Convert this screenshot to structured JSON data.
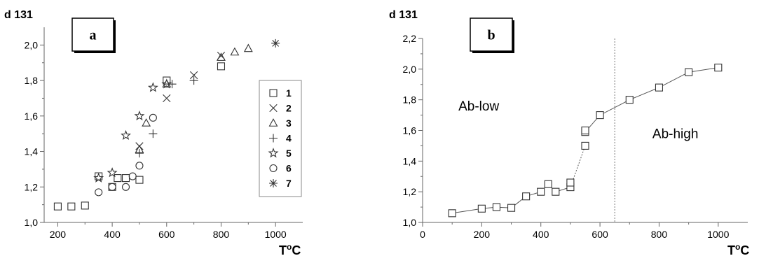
{
  "chart_data": [
    {
      "type": "scatter",
      "panel_letter": "a",
      "ylabel": "d 131",
      "xlabel": "T",
      "xlabel_sup": "o",
      "xlabel_tail": "C",
      "xlim": [
        150,
        1100
      ],
      "ylim": [
        1.0,
        2.1
      ],
      "xticks": [
        200,
        400,
        600,
        800,
        1000
      ],
      "xtick_labels": [
        "200",
        "400",
        "600",
        "800",
        "1000"
      ],
      "yticks": [
        1.0,
        1.2,
        1.4,
        1.6,
        1.8,
        2.0
      ],
      "ytick_labels": [
        "1,0",
        "1,2",
        "1,4",
        "1,6",
        "1,8",
        "2,0"
      ],
      "legend": {
        "position": "right",
        "entries": [
          "1",
          "2",
          "3",
          "4",
          "5",
          "6",
          "7"
        ]
      },
      "series": [
        {
          "name": "1",
          "marker": "square",
          "points": [
            [
              200,
              1.09
            ],
            [
              250,
              1.09
            ],
            [
              300,
              1.095
            ],
            [
              350,
              1.26
            ],
            [
              400,
              1.2
            ],
            [
              420,
              1.25
            ],
            [
              450,
              1.25
            ],
            [
              500,
              1.24
            ],
            [
              600,
              1.8
            ],
            [
              800,
              1.88
            ]
          ]
        },
        {
          "name": "2",
          "marker": "x",
          "points": [
            [
              500,
              1.43
            ],
            [
              600,
              1.7
            ],
            [
              700,
              1.83
            ],
            [
              800,
              1.94
            ]
          ]
        },
        {
          "name": "3",
          "marker": "triangle",
          "points": [
            [
              500,
              1.41
            ],
            [
              525,
              1.56
            ],
            [
              600,
              1.78
            ],
            [
              800,
              1.93
            ],
            [
              850,
              1.96
            ],
            [
              900,
              1.98
            ]
          ]
        },
        {
          "name": "4",
          "marker": "plus",
          "points": [
            [
              500,
              1.39
            ],
            [
              550,
              1.5
            ],
            [
              620,
              1.78
            ],
            [
              700,
              1.8
            ]
          ]
        },
        {
          "name": "5",
          "marker": "star",
          "points": [
            [
              350,
              1.25
            ],
            [
              400,
              1.28
            ],
            [
              450,
              1.49
            ],
            [
              500,
              1.6
            ],
            [
              550,
              1.76
            ],
            [
              600,
              1.78
            ]
          ]
        },
        {
          "name": "6",
          "marker": "circle",
          "points": [
            [
              350,
              1.17
            ],
            [
              400,
              1.2
            ],
            [
              450,
              1.2
            ],
            [
              475,
              1.26
            ],
            [
              500,
              1.32
            ],
            [
              550,
              1.59
            ]
          ]
        },
        {
          "name": "7",
          "marker": "asterisk",
          "points": [
            [
              1000,
              2.01
            ]
          ]
        }
      ]
    },
    {
      "type": "line",
      "panel_letter": "b",
      "ylabel": "d 131",
      "xlabel": "T",
      "xlabel_sup": "o",
      "xlabel_tail": "C",
      "xlim": [
        0,
        1100
      ],
      "ylim": [
        1.0,
        2.2
      ],
      "xticks": [
        0,
        200,
        400,
        600,
        800,
        1000
      ],
      "xtick_labels": [
        "0",
        "200",
        "400",
        "600",
        "800",
        "1000"
      ],
      "yticks": [
        1.0,
        1.2,
        1.4,
        1.6,
        1.8,
        2.0,
        2.2
      ],
      "ytick_labels": [
        "1,0",
        "1,2",
        "1,4",
        "1,6",
        "1,8",
        "2,0",
        "2,2"
      ],
      "divider_x": 650,
      "annotations": [
        {
          "text": "Ab-low",
          "x": 190,
          "y": 1.73
        },
        {
          "text": "Ab-high",
          "x": 855,
          "y": 1.55
        }
      ],
      "series": [
        {
          "marker": "square",
          "points": [
            [
              100,
              1.06
            ],
            [
              200,
              1.09
            ],
            [
              250,
              1.1
            ],
            [
              300,
              1.095
            ],
            [
              350,
              1.17
            ],
            [
              400,
              1.2
            ],
            [
              425,
              1.25
            ],
            [
              450,
              1.2
            ],
            [
              500,
              1.23
            ],
            [
              500,
              1.26
            ],
            [
              550,
              1.5
            ],
            [
              550,
              1.59
            ],
            [
              550,
              1.6
            ],
            [
              600,
              1.7
            ],
            [
              700,
              1.8
            ],
            [
              800,
              1.88
            ],
            [
              900,
              1.98
            ],
            [
              1000,
              2.01
            ]
          ],
          "line_segments": [
            {
              "style": "solid",
              "points": [
                [
                  100,
                  1.06
                ],
                [
                  200,
                  1.09
                ],
                [
                  250,
                  1.1
                ],
                [
                  300,
                  1.095
                ],
                [
                  350,
                  1.17
                ],
                [
                  400,
                  1.2
                ],
                [
                  425,
                  1.25
                ],
                [
                  450,
                  1.2
                ],
                [
                  500,
                  1.23
                ]
              ]
            },
            {
              "style": "dotted",
              "points": [
                [
                  500,
                  1.23
                ],
                [
                  550,
                  1.5
                ]
              ]
            },
            {
              "style": "solid",
              "points": [
                [
                  550,
                  1.59
                ],
                [
                  600,
                  1.7
                ],
                [
                  700,
                  1.8
                ],
                [
                  800,
                  1.88
                ],
                [
                  900,
                  1.98
                ],
                [
                  1000,
                  2.01
                ]
              ]
            }
          ]
        }
      ]
    }
  ]
}
